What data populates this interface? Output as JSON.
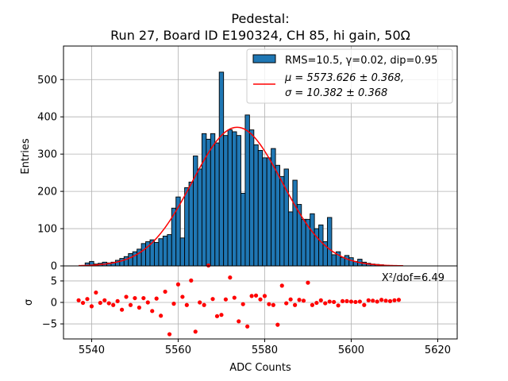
{
  "chart_data": {
    "type": "bar",
    "title": "Pedestal:",
    "subtitle": "Run 27, Board ID E190324, CH 85, hi gain, 50Ω",
    "xlabel": "ADC Counts",
    "ylabel": "Entries",
    "xlim": [
      5533.5,
      5624.5
    ],
    "ylim": [
      0,
      590
    ],
    "x_ticks": [
      5540,
      5560,
      5580,
      5600,
      5620
    ],
    "y_ticks": [
      0,
      100,
      200,
      300,
      400,
      500
    ],
    "grid": true,
    "legend_position": "top-right",
    "colors": {
      "bars": "#1f77b4",
      "fit": "#ff0000",
      "residuals": "#ff0000"
    },
    "histogram": {
      "name": "RMS=10.5, γ=0.02, dip=0.95",
      "bin_width": 1,
      "x": [
        5539,
        5540,
        5541,
        5542,
        5543,
        5544,
        5545,
        5546,
        5547,
        5548,
        5549,
        5550,
        5551,
        5552,
        5553,
        5554,
        5555,
        5556,
        5557,
        5558,
        5559,
        5560,
        5561,
        5562,
        5563,
        5564,
        5565,
        5566,
        5567,
        5568,
        5569,
        5570,
        5571,
        5572,
        5573,
        5574,
        5575,
        5576,
        5577,
        5578,
        5579,
        5580,
        5581,
        5582,
        5583,
        5584,
        5585,
        5586,
        5587,
        5588,
        5589,
        5590,
        5591,
        5592,
        5593,
        5594,
        5595,
        5596,
        5597,
        5598,
        5599,
        5600,
        5601,
        5602,
        5603,
        5604,
        5605,
        5606,
        5607
      ],
      "values": [
        8,
        12,
        5,
        7,
        10,
        8,
        10,
        15,
        20,
        25,
        33,
        38,
        45,
        60,
        65,
        70,
        63,
        73,
        80,
        84,
        155,
        185,
        75,
        210,
        225,
        295,
        260,
        355,
        340,
        355,
        330,
        520,
        350,
        365,
        360,
        350,
        195,
        405,
        365,
        325,
        310,
        290,
        290,
        315,
        270,
        240,
        260,
        145,
        230,
        165,
        125,
        125,
        140,
        100,
        110,
        65,
        130,
        30,
        38,
        23,
        28,
        22,
        12,
        18,
        10,
        7,
        5,
        4,
        3
      ]
    },
    "fit": {
      "name": "μ = 5573.626 ± 0.368,\nσ = 10.382 ± 0.368",
      "legend_line1": "μ = 5573.626 ± 0.368,",
      "legend_line2": "σ = 10.382 ± 0.368",
      "mu": 5573.626,
      "sigma": 10.382,
      "amplitude": 372,
      "x_range": [
        5537,
        5612
      ]
    },
    "residuals": {
      "ylabel": "σ",
      "ylim": [
        -8.5,
        8.5
      ],
      "y_ticks": [
        -5,
        0,
        5
      ],
      "annotation": "X²/dof=6.49",
      "x": [
        5537,
        5538,
        5539,
        5540,
        5541,
        5542,
        5543,
        5544,
        5545,
        5546,
        5547,
        5548,
        5549,
        5550,
        5551,
        5552,
        5553,
        5554,
        5555,
        5556,
        5557,
        5558,
        5559,
        5560,
        5561,
        5562,
        5563,
        5564,
        5565,
        5566,
        5567,
        5568,
        5569,
        5570,
        5571,
        5572,
        5573,
        5574,
        5575,
        5576,
        5577,
        5578,
        5579,
        5580,
        5581,
        5582,
        5583,
        5584,
        5585,
        5586,
        5587,
        5588,
        5589,
        5590,
        5591,
        5592,
        5593,
        5594,
        5595,
        5596,
        5597,
        5598,
        5599,
        5600,
        5601,
        5602,
        5603,
        5604,
        5605,
        5606,
        5607,
        5608,
        5609,
        5610,
        5611
      ],
      "values": [
        0.5,
        -0.1,
        0.8,
        -0.9,
        2.3,
        -0.1,
        0.5,
        -0.2,
        -0.6,
        0.3,
        -1.7,
        1.3,
        -0.6,
        1.0,
        -1.2,
        1.0,
        0.0,
        -2.0,
        0.9,
        -3.1,
        2.5,
        -7.4,
        -0.3,
        4.2,
        1.3,
        -0.6,
        5.1,
        -6.8,
        0.0,
        -0.6,
        8.6,
        0.8,
        -3.2,
        -2.9,
        0.7,
        5.8,
        1.1,
        -4.4,
        -0.4,
        -5.6,
        1.5,
        1.6,
        0.7,
        1.5,
        -0.4,
        -0.6,
        -5.2,
        3.9,
        -0.2,
        0.7,
        -0.6,
        0.6,
        0.4,
        4.6,
        -0.6,
        -0.1,
        0.5,
        -0.2,
        0.2,
        0.1,
        -0.7,
        0.3,
        0.3,
        0.2,
        0.1,
        0.2,
        -0.6,
        0.5,
        0.4,
        0.2,
        0.6,
        0.4,
        0.3,
        0.5,
        0.6
      ]
    }
  }
}
